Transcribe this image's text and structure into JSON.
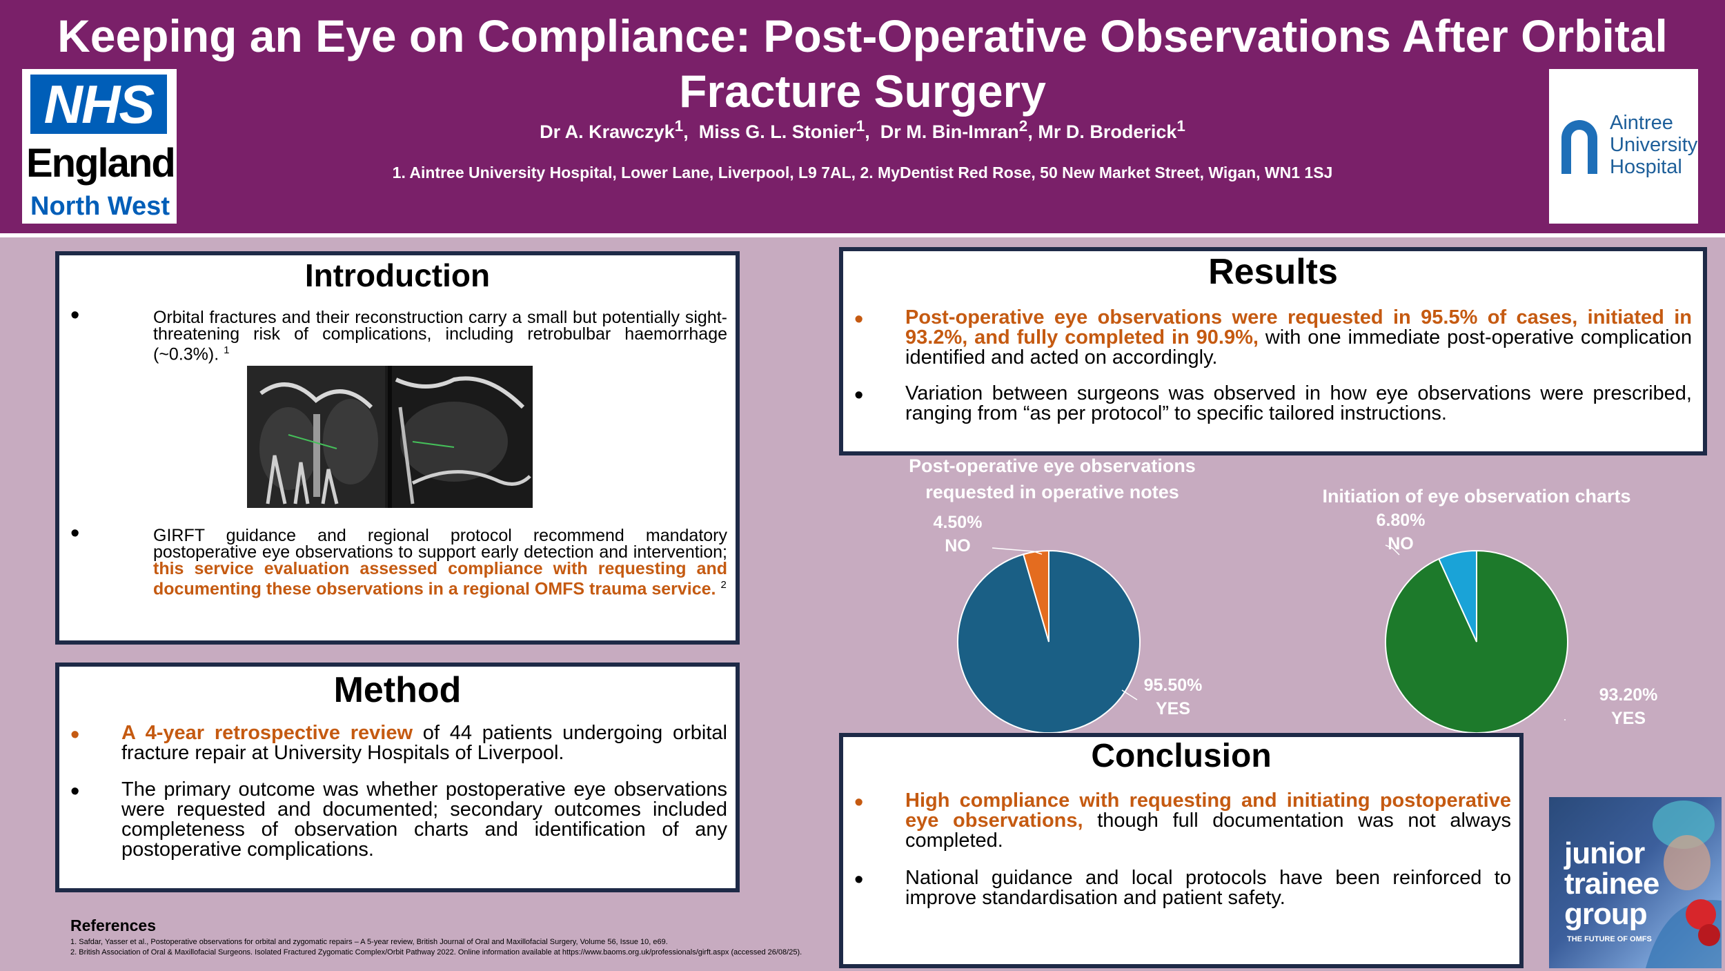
{
  "header": {
    "title": "Keeping an Eye on Compliance: Post-Operative Observations After Orbital Fracture Surgery",
    "authors": [
      {
        "name": "Dr A. Krawczyk",
        "sup": "1"
      },
      {
        "name": "Miss G. L. Stonier",
        "sup": "1"
      },
      {
        "name": "Dr M. Bin-Imran",
        "sup": "2"
      },
      {
        "name": "Mr D. Broderick",
        "sup": "1"
      }
    ],
    "affiliations": "1. Aintree University Hospital, Lower Lane, Liverpool, L9 7AL, 2. MyDentist Red Rose, 50 New Market Street, Wigan, WN1 1SJ",
    "nhs_logo": {
      "mark": "NHS",
      "line1": "England",
      "line2": "North West"
    },
    "aintree_logo": {
      "line1": "Aintree",
      "line2": "University",
      "line3": "Hospital"
    }
  },
  "introduction": {
    "title": "Introduction",
    "bullet1": "Orbital fractures and their reconstruction carry a small but potentially sight-threatening risk of complications, including retrobulbar haemorrhage (~0.3%).",
    "bullet1_sup": "1",
    "bullet2_plain": "GIRFT guidance and regional protocol recommend mandatory postoperative eye observations to support early detection and intervention; ",
    "bullet2_highlight": "this service evaluation assessed compliance with requesting and documenting these observations in a regional OMFS trauma service.",
    "bullet2_sup": "2"
  },
  "method": {
    "title": "Method",
    "bullet1_highlight": "A 4-year retrospective review",
    "bullet1_plain": " of 44 patients undergoing orbital fracture repair at University Hospitals of Liverpool.",
    "bullet2": "The primary outcome was whether postoperative eye observations were requested and documented; secondary outcomes included completeness of observation charts and identification of any postoperative complications."
  },
  "results": {
    "title": "Results",
    "bullet1_highlight": "Post-operative eye observations were requested in 95.5% of cases, initiated in 93.2%, and fully completed in 90.9%,",
    "bullet1_plain": " with one immediate post-operative complication identified and acted on accordingly.",
    "bullet2": "Variation between surgeons was observed in how eye observations were prescribed, ranging from “as per protocol” to specific tailored instructions."
  },
  "conclusion": {
    "title": "Conclusion",
    "bullet1_highlight": "High compliance with requesting and initiating postoperative eye observations,",
    "bullet1_plain": " though full documentation was not always completed.",
    "bullet2": "National guidance and local protocols have been reinforced to improve standardisation and patient safety."
  },
  "references": {
    "title": "References",
    "ref1": "1. Safdar, Yasser et al., Postoperative observations for orbital and zygomatic repairs – A 5-year review, British Journal of Oral and Maxillofacial Surgery, Volume 56, Issue 10, e69.",
    "ref2": "2. British Association of Oral & Maxillofacial Surgeons. Isolated Fractured Zygomatic Complex/Orbit Pathway 2022. Online information available at https://www.baoms.org.uk/professionals/girft.aspx (accessed 26/08/25)."
  },
  "junior_logo": {
    "line1": "junior",
    "line2": "trainee",
    "line3": "group",
    "tagline": "THE FUTURE OF OMFS"
  },
  "chart_data": [
    {
      "type": "pie",
      "title": "Post-operative eye observations requested in operative notes",
      "slices": [
        {
          "label": "YES",
          "value": 95.5,
          "display": "95.50%",
          "color": "#1a5f85"
        },
        {
          "label": "NO",
          "value": 4.5,
          "display": "4.50%",
          "color": "#e46c1f"
        }
      ]
    },
    {
      "type": "pie",
      "title": "Initiation of eye observation charts",
      "slices": [
        {
          "label": "YES",
          "value": 93.2,
          "display": "93.20%",
          "color": "#1d7a2b"
        },
        {
          "label": "NO",
          "value": 6.8,
          "display": "6.80%",
          "color": "#1aa3d7"
        }
      ]
    }
  ]
}
